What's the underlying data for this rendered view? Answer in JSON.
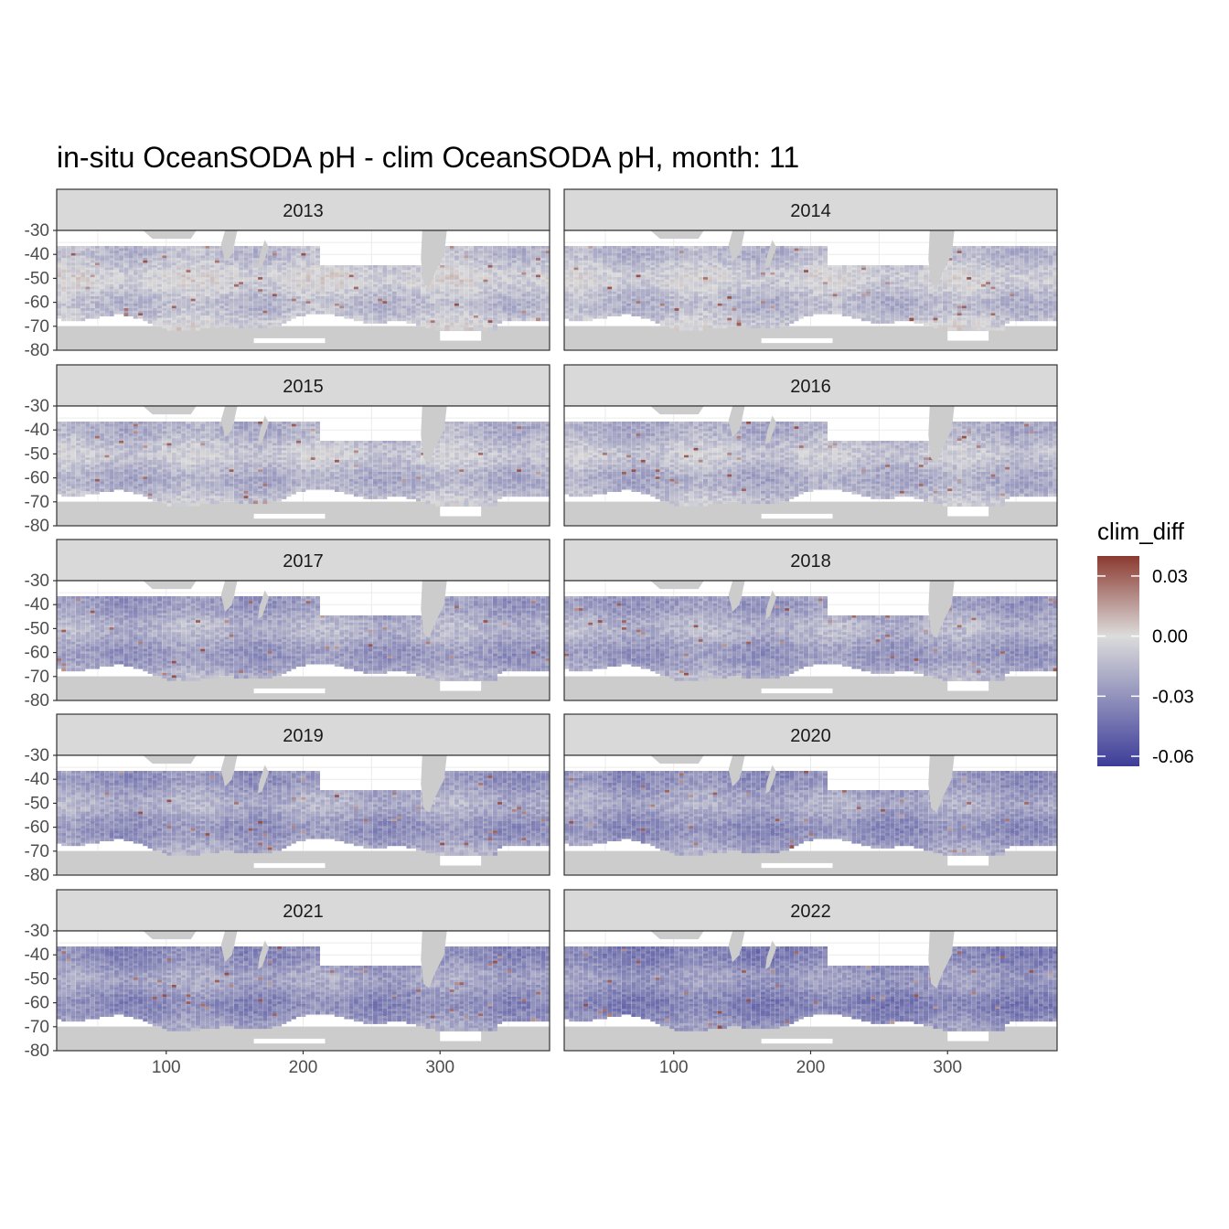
{
  "chart_data": {
    "type": "heatmap",
    "title": "in-situ OceanSODA pH - clim OceanSODA pH, month: 11",
    "xlabel": "",
    "ylabel": "",
    "xlim": [
      20,
      380
    ],
    "ylim": [
      -80,
      -30
    ],
    "x_ticks": [
      "100",
      "200",
      "300"
    ],
    "y_ticks": [
      "-30",
      "-40",
      "-50",
      "-60",
      "-70",
      "-80"
    ],
    "grid": true,
    "legend": {
      "title": "clim_diff",
      "position": "right",
      "labels": [
        "0.03",
        "0.00",
        "-0.03",
        "-0.06"
      ],
      "range": [
        -0.065,
        0.04
      ],
      "colors": {
        "high": "#8b3a30",
        "mid": "#dcdcdc",
        "low": "#3d3d99"
      }
    },
    "facets": [
      {
        "label": "2013",
        "mean": -0.008
      },
      {
        "label": "2014",
        "mean": -0.01
      },
      {
        "label": "2015",
        "mean": -0.013
      },
      {
        "label": "2016",
        "mean": -0.014
      },
      {
        "label": "2017",
        "mean": -0.022
      },
      {
        "label": "2018",
        "mean": -0.022
      },
      {
        "label": "2019",
        "mean": -0.024
      },
      {
        "label": "2020",
        "mean": -0.026
      },
      {
        "label": "2021",
        "mean": -0.028
      },
      {
        "label": "2022",
        "mean": -0.032
      }
    ],
    "land_color": "#cccccc",
    "missing_color": "#ffffff"
  }
}
